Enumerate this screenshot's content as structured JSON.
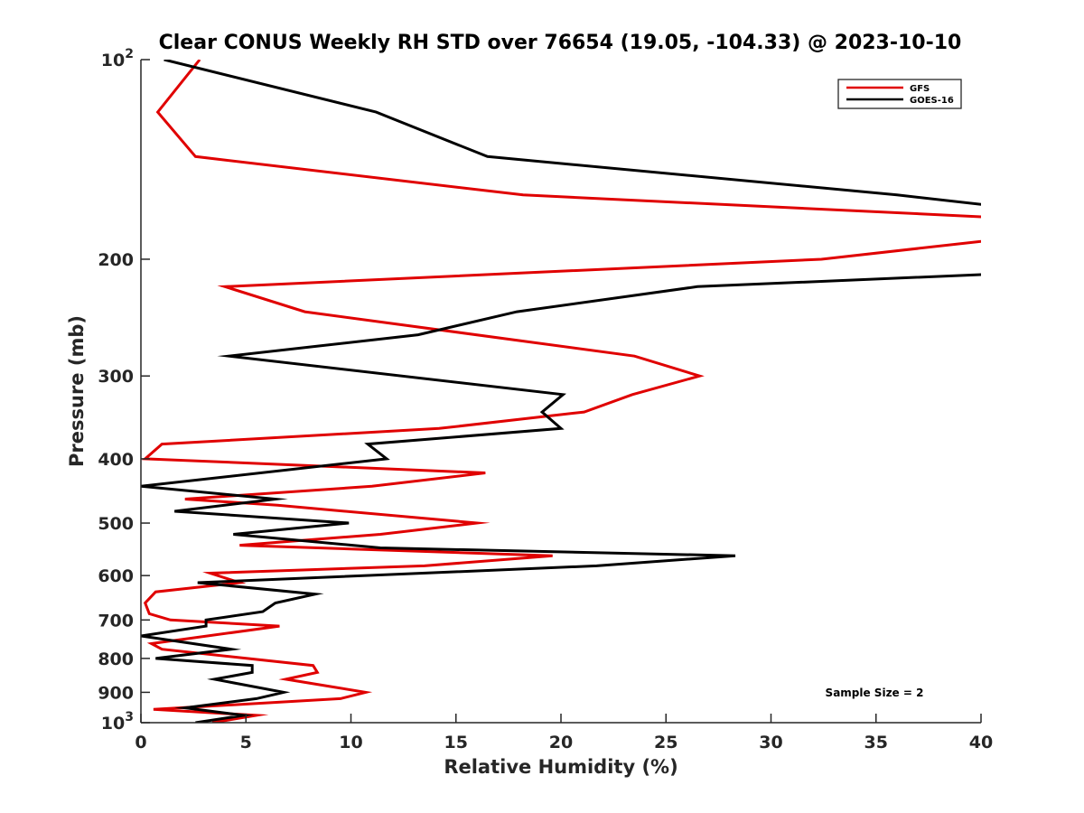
{
  "chart_data": {
    "type": "line",
    "title": "Clear CONUS Weekly RH STD over 76654 (19.05, -104.33) @ 2023-10-10",
    "xlabel": "Relative Humidity (%)",
    "ylabel": "Pressure (mb)",
    "xlim": [
      0,
      40
    ],
    "ylim": [
      100,
      1000
    ],
    "yscale": "log",
    "y_reversed": true,
    "grid": false,
    "legend_position": "top-right",
    "x_ticks": [
      0,
      5,
      10,
      15,
      20,
      25,
      30,
      35,
      40
    ],
    "x_tick_labels": [
      "0",
      "5",
      "10",
      "15",
      "20",
      "25",
      "30",
      "35",
      "40"
    ],
    "y_ticks": [
      100,
      200,
      300,
      400,
      500,
      600,
      700,
      800,
      900,
      1000
    ],
    "y_tick_labels": [
      {
        "base": "10",
        "sup": "2"
      },
      {
        "base": "200",
        "sup": ""
      },
      {
        "base": "300",
        "sup": ""
      },
      {
        "base": "400",
        "sup": ""
      },
      {
        "base": "500",
        "sup": ""
      },
      {
        "base": "600",
        "sup": ""
      },
      {
        "base": "700",
        "sup": ""
      },
      {
        "base": "800",
        "sup": ""
      },
      {
        "base": "900",
        "sup": ""
      },
      {
        "base": "10",
        "sup": "3"
      }
    ],
    "annotation": "Sample Size = 2",
    "series": [
      {
        "name": "GFS",
        "color": "#e00000",
        "points": [
          [
            2.8,
            100
          ],
          [
            0.8,
            120
          ],
          [
            2.6,
            140
          ],
          [
            18.2,
            160
          ],
          [
            44.0,
            175
          ],
          [
            40.0,
            188
          ],
          [
            32.4,
            200
          ],
          [
            4.0,
            220
          ],
          [
            7.8,
            240
          ],
          [
            23.5,
            280
          ],
          [
            26.6,
            300
          ],
          [
            23.4,
            320
          ],
          [
            21.1,
            340
          ],
          [
            14.2,
            360
          ],
          [
            1.0,
            380
          ],
          [
            0.2,
            400
          ],
          [
            16.4,
            420
          ],
          [
            11.0,
            440
          ],
          [
            2.1,
            460
          ],
          [
            6.5,
            470
          ],
          [
            16.0,
            500
          ],
          [
            11.4,
            520
          ],
          [
            4.7,
            540
          ],
          [
            19.6,
            560
          ],
          [
            13.5,
            580
          ],
          [
            3.3,
            595
          ],
          [
            4.7,
            615
          ],
          [
            0.7,
            635
          ],
          [
            0.2,
            660
          ],
          [
            0.4,
            685
          ],
          [
            1.4,
            700
          ],
          [
            6.6,
            715
          ],
          [
            0.5,
            760
          ],
          [
            1.0,
            775
          ],
          [
            8.2,
            820
          ],
          [
            8.4,
            840
          ],
          [
            6.9,
            860
          ],
          [
            10.7,
            900
          ],
          [
            9.5,
            920
          ],
          [
            0.6,
            955
          ],
          [
            5.5,
            975
          ],
          [
            3.4,
            1000
          ]
        ]
      },
      {
        "name": "GOES-16",
        "color": "#000000",
        "points": [
          [
            1.1,
            100
          ],
          [
            11.2,
            120
          ],
          [
            16.5,
            140
          ],
          [
            36.0,
            160
          ],
          [
            42.0,
            168
          ],
          [
            41.5,
            210
          ],
          [
            26.5,
            220
          ],
          [
            17.9,
            240
          ],
          [
            13.2,
            260
          ],
          [
            4.2,
            280
          ],
          [
            20.1,
            320
          ],
          [
            19.1,
            340
          ],
          [
            20.0,
            360
          ],
          [
            10.8,
            380
          ],
          [
            11.7,
            400
          ],
          [
            0.0,
            440
          ],
          [
            6.4,
            460
          ],
          [
            1.6,
            480
          ],
          [
            9.9,
            500
          ],
          [
            4.4,
            520
          ],
          [
            11.4,
            545
          ],
          [
            28.3,
            560
          ],
          [
            21.7,
            580
          ],
          [
            2.7,
            615
          ],
          [
            8.3,
            640
          ],
          [
            6.4,
            660
          ],
          [
            5.8,
            680
          ],
          [
            3.1,
            700
          ],
          [
            3.1,
            715
          ],
          [
            0.0,
            740
          ],
          [
            4.3,
            775
          ],
          [
            0.7,
            800
          ],
          [
            5.3,
            820
          ],
          [
            5.3,
            840
          ],
          [
            3.5,
            860
          ],
          [
            6.8,
            900
          ],
          [
            5.5,
            920
          ],
          [
            2.1,
            950
          ],
          [
            4.9,
            975
          ],
          [
            2.6,
            1000
          ]
        ]
      }
    ]
  }
}
